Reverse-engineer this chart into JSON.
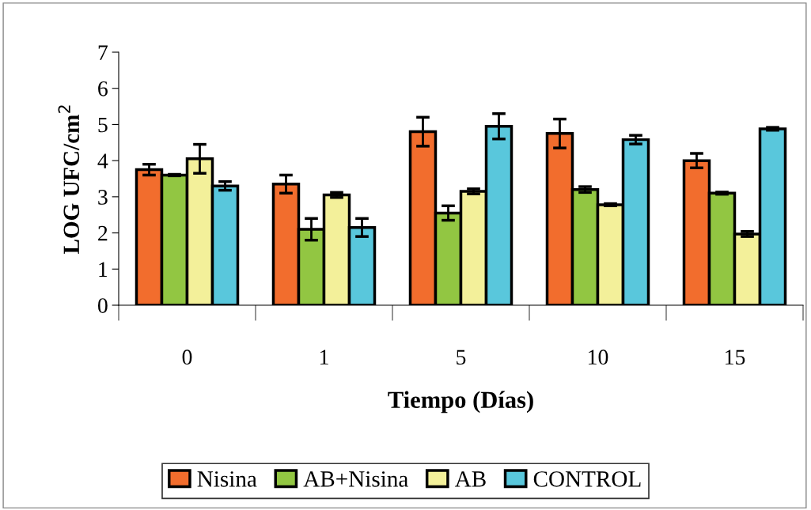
{
  "chart_data": {
    "type": "bar",
    "xlabel": "Tiempo (Días)",
    "ylabel": "LOG UFC/cm$^{2}$",
    "categories": [
      "0",
      "1",
      "5",
      "10",
      "15"
    ],
    "ylim": [
      0,
      7
    ],
    "yticks": [
      0,
      1,
      2,
      3,
      4,
      5,
      6,
      7
    ],
    "grid": false,
    "legend": "bottom",
    "series": [
      {
        "name": "Nisina",
        "color": "#f26d2d",
        "values": [
          3.75,
          3.35,
          4.8,
          4.75,
          4.0
        ],
        "errors": [
          0.15,
          0.25,
          0.4,
          0.4,
          0.2
        ]
      },
      {
        "name": "AB+Nisina",
        "color": "#92c642",
        "values": [
          3.6,
          2.1,
          2.55,
          3.2,
          3.1
        ],
        "errors": [
          0.02,
          0.3,
          0.2,
          0.08,
          0.03
        ]
      },
      {
        "name": "AB",
        "color": "#f3f09a",
        "values": [
          4.05,
          3.05,
          3.15,
          2.78,
          1.97
        ],
        "errors": [
          0.4,
          0.07,
          0.07,
          0.03,
          0.07
        ]
      },
      {
        "name": "CONTROL",
        "color": "#59c7dc",
        "values": [
          3.3,
          2.15,
          4.95,
          4.58,
          4.88
        ],
        "errors": [
          0.12,
          0.25,
          0.35,
          0.12,
          0.04
        ]
      }
    ]
  }
}
